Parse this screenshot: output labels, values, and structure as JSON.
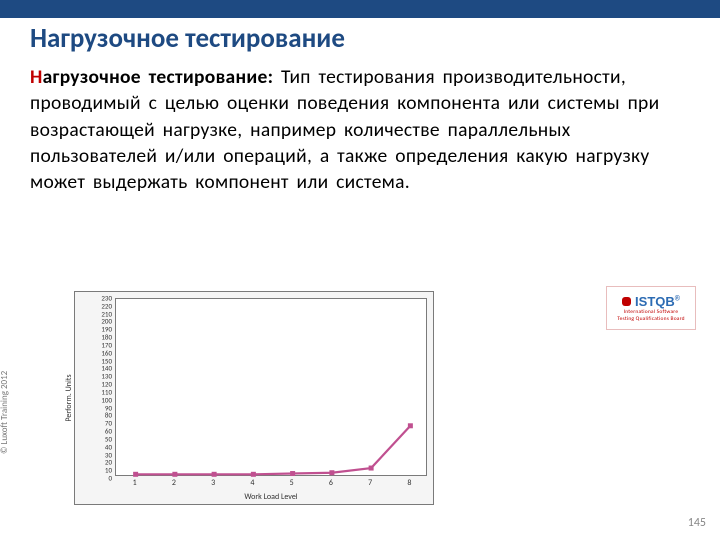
{
  "topbar_color": "#1e4a82",
  "title": "Нагрузочное тестирование",
  "definition": {
    "term_first": "Н",
    "term_rest": "агрузочное тестирование:",
    "text": " Тип  тестирования производительности,  проводимый  с  целью  оценки поведения  компонента  или  системы  при возрастающей  нагрузке,  например  количестве параллельных  пользователей  и/или  операций,  а  также определения  какую  нагрузку  может выдержать компонент  или  система."
  },
  "chart": {
    "type": "line",
    "background_color": "#f5f5f5",
    "plot_background": "#ffffff",
    "border_color": "#7a7a7a",
    "xlabel": "Work Load Level",
    "ylabel": "Perform. Units",
    "label_fontsize": 8,
    "tick_fontsize": 7,
    "xlim": [
      0.5,
      8.5
    ],
    "ylim": [
      0,
      230
    ],
    "xtick_values": [
      1,
      2,
      3,
      4,
      5,
      6,
      7,
      8
    ],
    "ytick_start": 0,
    "ytick_end": 230,
    "ytick_step": 10,
    "x": [
      1,
      2,
      3,
      4,
      5,
      6,
      7,
      8
    ],
    "y": [
      6,
      6,
      6,
      6,
      7,
      8,
      14,
      68
    ],
    "line_color": "#c05090",
    "line_width": 2.2,
    "marker": "square",
    "marker_size": 5,
    "marker_color": "#c05090"
  },
  "istqb": {
    "brand": "ISTQB",
    "sup": "®",
    "sub_line1": "International Software",
    "sub_line2": "Testing Qualifications Board",
    "brand_color": "#2c6bb3",
    "accent_color": "#c00000",
    "border_color": "#e8bdbd"
  },
  "copyright": "© Luxoft Training 2012",
  "page_number": "145"
}
